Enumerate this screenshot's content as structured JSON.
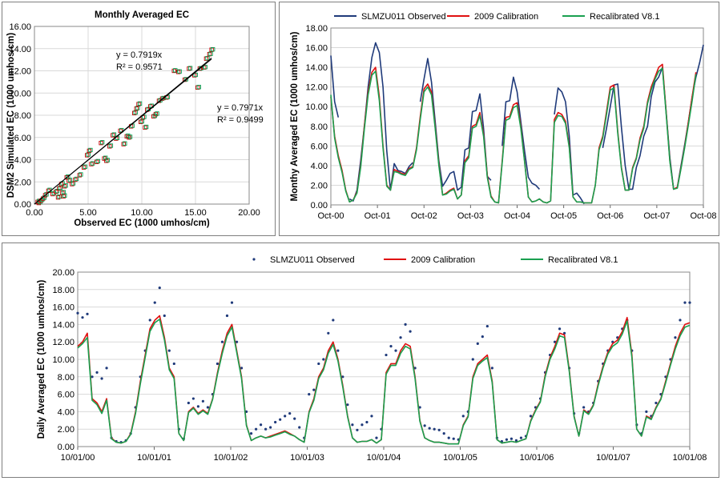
{
  "chart_data": [
    {
      "type": "scatter",
      "title": "Monthly Averaged EC",
      "xlabel": "Observed EC (1000 umhos/cm)",
      "ylabel": "DSM2 Simulated EC (1000 umhos/cm)",
      "xlim": [
        0,
        20
      ],
      "ylim": [
        0,
        16
      ],
      "x_ticks": [
        "0.00",
        "5.00",
        "10.00",
        "15.00",
        "20.00"
      ],
      "y_ticks": [
        "0.00",
        "2.00",
        "4.00",
        "6.00",
        "8.00",
        "10.00",
        "12.00",
        "14.00",
        "16.00"
      ],
      "grid": true,
      "series": [
        {
          "color": "#c00000",
          "trendline": {
            "slope": 0.7971,
            "eq": "y = 0.7971x",
            "r2": "R² = 0.9499"
          }
        },
        {
          "color": "#00a050",
          "trendline": {
            "slope": 0.7919,
            "eq": "y = 0.7919x",
            "r2": "R² = 0.9571"
          }
        }
      ],
      "points": [
        [
          0.3,
          0.2
        ],
        [
          0.4,
          0.1
        ],
        [
          0.6,
          0.3
        ],
        [
          0.8,
          0.5
        ],
        [
          1.0,
          0.8
        ],
        [
          1.3,
          1.2
        ],
        [
          1.7,
          0.9
        ],
        [
          2.0,
          1.1
        ],
        [
          2.2,
          0.6
        ],
        [
          2.3,
          1.4
        ],
        [
          2.5,
          1.8
        ],
        [
          2.6,
          1.0
        ],
        [
          2.7,
          0.7
        ],
        [
          2.8,
          1.6
        ],
        [
          3.0,
          2.4
        ],
        [
          3.2,
          2.1
        ],
        [
          3.5,
          1.8
        ],
        [
          3.8,
          2.2
        ],
        [
          4.2,
          2.6
        ],
        [
          4.6,
          3.3
        ],
        [
          4.9,
          4.4
        ],
        [
          5.1,
          4.8
        ],
        [
          5.3,
          3.6
        ],
        [
          5.8,
          3.8
        ],
        [
          6.2,
          5.5
        ],
        [
          6.5,
          4.1
        ],
        [
          6.7,
          3.9
        ],
        [
          7.0,
          5.2
        ],
        [
          7.3,
          6.2
        ],
        [
          7.6,
          5.9
        ],
        [
          8.0,
          6.6
        ],
        [
          8.3,
          5.4
        ],
        [
          8.6,
          6.1
        ],
        [
          8.8,
          6.0
        ],
        [
          9.0,
          7.0
        ],
        [
          9.3,
          8.2
        ],
        [
          9.5,
          8.6
        ],
        [
          9.7,
          9.0
        ],
        [
          9.9,
          7.4
        ],
        [
          10.1,
          7.8
        ],
        [
          10.3,
          6.9
        ],
        [
          10.5,
          8.5
        ],
        [
          10.8,
          8.8
        ],
        [
          11.1,
          7.9
        ],
        [
          11.3,
          8.1
        ],
        [
          11.6,
          9.3
        ],
        [
          11.9,
          9.5
        ],
        [
          12.3,
          9.6
        ],
        [
          13.0,
          12.0
        ],
        [
          13.4,
          11.9
        ],
        [
          14.0,
          11.2
        ],
        [
          14.4,
          12.2
        ],
        [
          14.9,
          11.6
        ],
        [
          15.2,
          10.5
        ],
        [
          15.4,
          12.2
        ],
        [
          15.8,
          12.3
        ],
        [
          16.0,
          13.1
        ],
        [
          16.3,
          13.5
        ],
        [
          16.5,
          13.9
        ]
      ]
    },
    {
      "type": "line",
      "xlabel": "",
      "ylabel": "Monthy Averaged EC (1000 umhos/cm)",
      "ylim": [
        0,
        18
      ],
      "x_ticks": [
        "Oct-00",
        "Oct-01",
        "Oct-02",
        "Oct-03",
        "Oct-04",
        "Oct-05",
        "Oct-06",
        "Oct-07",
        "Oct-08"
      ],
      "y_ticks": [
        "0.00",
        "2.00",
        "4.00",
        "6.00",
        "8.00",
        "10.00",
        "12.00",
        "14.00",
        "16.00",
        "18.00"
      ],
      "grid": true,
      "legend": "top",
      "series": [
        {
          "name": "SLMZU011 Observed",
          "color": "#1f3a7a",
          "values": [
            15.2,
            10.5,
            8.9,
            null,
            null,
            0.6,
            0.4,
            1.5,
            4.5,
            8.0,
            12.0,
            15.0,
            16.5,
            15.5,
            12.0,
            5.5,
            1.5,
            4.2,
            3.5,
            3.4,
            3.2,
            3.9,
            4.3,
            null,
            10.5,
            12.8,
            14.9,
            12.5,
            8.5,
            4.5,
            1.9,
            2.5,
            3.2,
            3.4,
            1.5,
            1.8,
            5.6,
            5.8,
            9.5,
            9.6,
            11.3,
            7.8,
            2.9,
            2.5,
            null,
            null,
            6.0,
            10.5,
            10.6,
            13.0,
            11.5,
            8.5,
            5.5,
            2.8,
            2.2,
            2.0,
            1.6,
            null,
            null,
            null,
            9.2,
            11.9,
            11.5,
            10.5,
            7.0,
            1.0,
            1.2,
            0.7,
            0.1,
            null,
            null,
            null,
            null,
            5.8,
            7.8,
            10.0,
            12.2,
            12.3,
            7.9,
            4.0,
            1.6,
            1.6,
            3.8,
            5.0,
            7.0,
            8.0,
            11.0,
            12.5,
            13.0,
            14.0,
            9.5,
            4.8,
            1.6,
            1.8,
            4.0,
            6.2,
            8.5,
            11.0,
            13.0,
            14.5,
            16.3
          ]
        },
        {
          "name": "2009 Calibration",
          "color": "#e01010",
          "values": [
            11.0,
            7.0,
            5.0,
            3.5,
            1.5,
            0.3,
            0.5,
            1.3,
            4.0,
            8.0,
            11.5,
            13.5,
            14.0,
            11.0,
            6.0,
            2.0,
            1.5,
            3.6,
            3.4,
            3.2,
            3.1,
            3.7,
            3.9,
            5.8,
            9.0,
            11.8,
            12.3,
            11.5,
            8.0,
            4.2,
            1.0,
            1.2,
            1.5,
            1.7,
            0.6,
            1.0,
            4.5,
            5.0,
            8.0,
            8.2,
            9.4,
            7.2,
            3.0,
            0.9,
            0.3,
            0.2,
            4.5,
            8.9,
            9.0,
            10.2,
            10.4,
            8.0,
            4.5,
            0.8,
            0.3,
            0.4,
            0.6,
            0.3,
            0.2,
            0.4,
            8.7,
            9.4,
            9.2,
            8.5,
            6.0,
            0.8,
            0.3,
            0.3,
            0.2,
            0.2,
            0.2,
            2.0,
            5.8,
            7.0,
            9.5,
            12.0,
            12.2,
            7.5,
            3.8,
            1.5,
            1.5,
            3.8,
            4.8,
            6.8,
            8.0,
            10.5,
            12.0,
            13.0,
            14.0,
            14.3,
            9.5,
            4.5,
            1.6,
            1.8,
            3.8,
            6.0,
            8.5,
            11.0,
            13.5
          ]
        },
        {
          "name": "Recalibrated V8.1",
          "color": "#1aa050",
          "values": [
            11.2,
            6.8,
            4.8,
            3.3,
            1.4,
            0.3,
            0.5,
            1.2,
            3.8,
            7.7,
            11.2,
            13.2,
            13.6,
            10.6,
            5.8,
            1.9,
            1.5,
            3.4,
            3.3,
            3.1,
            3.0,
            3.6,
            3.8,
            5.6,
            8.7,
            11.5,
            12.0,
            11.2,
            7.8,
            4.0,
            1.0,
            1.1,
            1.4,
            1.6,
            0.6,
            1.0,
            4.3,
            4.8,
            7.8,
            8.0,
            9.1,
            7.0,
            2.8,
            0.8,
            0.3,
            0.2,
            4.3,
            8.6,
            8.8,
            9.9,
            10.1,
            7.8,
            4.4,
            0.8,
            0.3,
            0.4,
            0.6,
            0.3,
            0.2,
            0.4,
            8.4,
            9.1,
            9.0,
            8.3,
            5.8,
            0.8,
            0.3,
            0.3,
            0.2,
            0.2,
            0.2,
            2.0,
            5.6,
            6.8,
            9.2,
            11.7,
            11.9,
            7.3,
            3.7,
            1.5,
            1.5,
            3.7,
            4.7,
            6.6,
            7.8,
            10.3,
            11.7,
            12.8,
            13.6,
            13.9,
            9.3,
            4.4,
            1.6,
            1.7,
            3.7,
            5.9,
            8.2,
            10.6,
            13.3
          ]
        }
      ]
    },
    {
      "type": "line",
      "xlabel": "",
      "ylabel": "Daily Averaged EC (1000 umhos/cm)",
      "ylim": [
        0,
        20
      ],
      "x_ticks": [
        "10/01/00",
        "10/01/01",
        "10/01/02",
        "10/01/03",
        "10/01/04",
        "10/01/05",
        "10/01/06",
        "10/01/07",
        "10/01/08"
      ],
      "y_ticks": [
        "0.00",
        "2.00",
        "4.00",
        "6.00",
        "8.00",
        "10.00",
        "12.00",
        "14.00",
        "16.00",
        "18.00",
        "20.00"
      ],
      "grid": true,
      "legend": "top",
      "series": [
        {
          "name": "SLMZU011 Observed",
          "color": "#1f3a7a",
          "values": [
            15.3,
            14.8,
            15.2,
            8.0,
            8.5,
            7.8,
            9.0,
            1.0,
            0.6,
            0.5,
            0.7,
            1.5,
            4.5,
            8.0,
            11.0,
            14.5,
            16.5,
            18.2,
            15.0,
            11.0,
            9.5,
            2.0,
            0.9,
            5.0,
            5.5,
            4.6,
            5.2,
            4.5,
            6.0,
            9.5,
            12.0,
            15.0,
            16.5,
            12.0,
            9.0,
            4.0,
            1.5,
            2.0,
            2.5,
            2.0,
            2.2,
            2.8,
            3.1,
            3.5,
            3.8,
            3.2,
            2.2,
            1.0,
            6.0,
            6.5,
            9.5,
            10.0,
            13.0,
            14.5,
            11.0,
            8.0,
            4.8,
            2.5,
            1.9,
            2.5,
            2.8,
            3.5,
            1.0,
            2.0,
            10.5,
            11.5,
            11.0,
            12.5,
            14.0,
            13.2,
            9.0,
            4.5,
            2.4,
            2.1,
            2.0,
            1.9,
            1.5,
            1.0,
            0.9,
            0.8,
            3.5,
            4.0,
            10.0,
            11.8,
            12.6,
            13.8,
            9.0,
            1.0,
            0.6,
            0.8,
            0.9,
            0.7,
            1.0,
            1.2,
            3.5,
            4.5,
            5.5,
            8.5,
            10.5,
            12.0,
            13.5,
            13.0,
            9.0,
            3.8,
            1.5,
            4.5,
            4.0,
            5.0,
            7.5,
            9.5,
            11.0,
            12.0,
            12.5,
            13.5,
            14.5,
            11.0,
            2.5,
            1.5,
            4.0,
            3.5,
            5.0,
            6.0,
            8.0,
            10.0,
            12.5,
            14.5,
            16.5,
            16.5
          ]
        },
        {
          "name": "2009 Calibration",
          "color": "#e01010",
          "values": [
            11.5,
            12.0,
            13.0,
            5.5,
            5.0,
            4.0,
            5.5,
            1.0,
            0.5,
            0.4,
            0.6,
            1.5,
            4.0,
            7.5,
            10.5,
            13.5,
            14.5,
            15.0,
            12.5,
            9.0,
            8.0,
            1.5,
            0.7,
            4.0,
            4.5,
            3.8,
            4.2,
            3.8,
            5.5,
            8.5,
            11.0,
            13.0,
            14.0,
            11.0,
            8.0,
            2.5,
            0.7,
            1.0,
            1.2,
            1.0,
            1.2,
            1.4,
            1.6,
            1.8,
            1.5,
            1.2,
            0.8,
            0.5,
            4.0,
            5.5,
            8.0,
            9.0,
            11.0,
            12.0,
            10.0,
            7.0,
            3.5,
            1.0,
            0.5,
            0.6,
            0.6,
            0.8,
            0.4,
            0.8,
            8.5,
            9.5,
            9.5,
            11.0,
            11.8,
            11.5,
            8.0,
            3.0,
            1.0,
            0.7,
            0.5,
            0.5,
            0.4,
            0.3,
            0.3,
            0.3,
            2.5,
            3.5,
            8.0,
            9.5,
            10.0,
            10.5,
            7.5,
            0.8,
            0.4,
            0.5,
            0.6,
            0.5,
            0.7,
            0.9,
            3.0,
            4.2,
            5.2,
            8.2,
            10.2,
            11.5,
            13.0,
            12.8,
            8.8,
            3.5,
            1.2,
            4.2,
            3.8,
            4.8,
            7.2,
            9.2,
            10.8,
            11.8,
            12.2,
            13.2,
            14.8,
            10.5,
            2.0,
            1.2,
            3.5,
            3.2,
            4.5,
            5.5,
            7.5,
            9.5,
            11.5,
            13.0,
            14.0,
            14.2
          ]
        },
        {
          "name": "Recalibrated V8.1",
          "color": "#1aa050",
          "values": [
            11.3,
            11.8,
            12.5,
            5.3,
            4.8,
            3.8,
            5.3,
            0.9,
            0.5,
            0.4,
            0.6,
            1.4,
            3.8,
            7.2,
            10.2,
            13.2,
            14.2,
            14.6,
            12.2,
            8.8,
            7.8,
            1.5,
            0.7,
            3.9,
            4.4,
            3.7,
            4.1,
            3.7,
            5.4,
            8.3,
            10.7,
            12.7,
            13.7,
            10.8,
            7.8,
            2.4,
            0.7,
            1.0,
            1.2,
            1.0,
            1.1,
            1.3,
            1.5,
            1.7,
            1.4,
            1.2,
            0.8,
            0.5,
            3.9,
            5.3,
            7.8,
            8.8,
            10.7,
            11.7,
            9.8,
            6.8,
            3.4,
            1.0,
            0.5,
            0.6,
            0.6,
            0.8,
            0.4,
            0.8,
            8.3,
            9.3,
            9.3,
            10.7,
            11.5,
            11.2,
            7.8,
            2.9,
            1.0,
            0.7,
            0.5,
            0.5,
            0.4,
            0.3,
            0.3,
            0.3,
            2.4,
            3.4,
            7.8,
            9.3,
            9.8,
            10.2,
            7.3,
            0.8,
            0.4,
            0.5,
            0.6,
            0.5,
            0.7,
            0.9,
            2.9,
            4.1,
            5.1,
            8.0,
            10.0,
            11.2,
            12.7,
            12.5,
            8.6,
            3.4,
            1.2,
            4.1,
            3.7,
            4.7,
            7.0,
            9.0,
            10.6,
            11.5,
            11.9,
            12.9,
            14.4,
            10.2,
            2.0,
            1.2,
            3.4,
            3.1,
            4.4,
            5.4,
            7.3,
            9.3,
            11.2,
            12.7,
            13.7,
            13.9
          ]
        }
      ]
    }
  ]
}
